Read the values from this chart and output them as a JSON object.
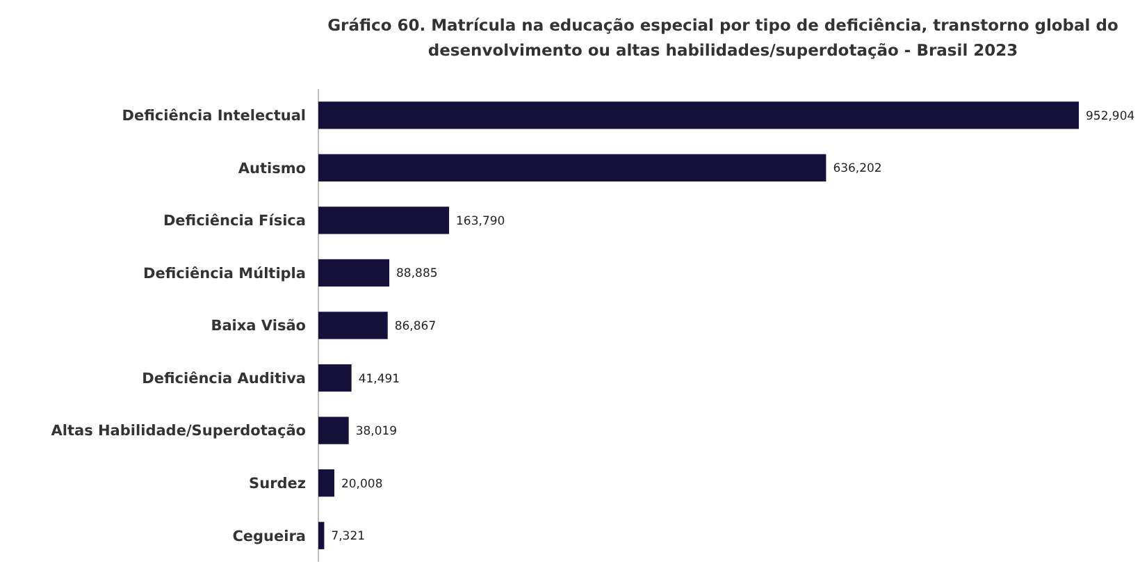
{
  "chart_data": {
    "type": "bar",
    "orientation": "horizontal",
    "title": "Gráfico 60. Matrícula na educação especial por tipo de deficiência, transtorno global do desenvolvimento ou altas habilidades/superdotação - Brasil 2023",
    "categories": [
      "Deficiência Intelectual",
      "Autismo",
      "Deficiência Física",
      "Deficiência Múltipla",
      "Baixa Visão",
      "Deficiência Auditiva",
      "Altas Habilidade/Superdotação",
      "Surdez",
      "Cegueira"
    ],
    "values": [
      952904,
      636202,
      163790,
      88885,
      86867,
      41491,
      38019,
      20008,
      7321
    ],
    "value_labels": [
      "952,904",
      "636,202",
      "163,790",
      "88,885",
      "86,867",
      "41,491",
      "38,019",
      "20,008",
      "7,321"
    ],
    "color": "#15113a"
  }
}
